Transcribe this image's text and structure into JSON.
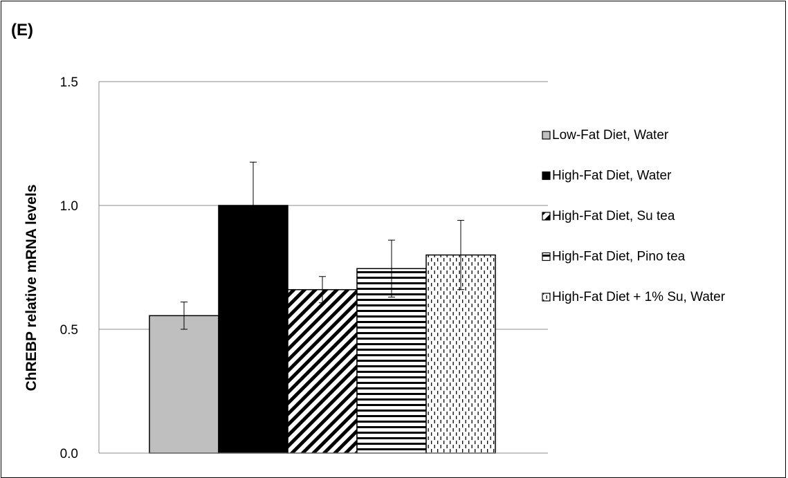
{
  "panel_label": "(E)",
  "chart_data": {
    "type": "bar",
    "title": "",
    "xlabel": "",
    "ylabel": "ChREBP relative mRNA levels",
    "ylim": [
      0,
      1.5
    ],
    "yticks": [
      "0.0",
      "0.5",
      "1.0",
      "1.5"
    ],
    "grid": true,
    "legend_position": "right",
    "series": [
      {
        "name": "Low-Fat Diet, Water",
        "value": 0.555,
        "error": 0.055,
        "pattern": "solid-gray",
        "color": "#bfbfbf"
      },
      {
        "name": "High-Fat Diet, Water",
        "value": 1.0,
        "error": 0.175,
        "pattern": "solid-black",
        "color": "#000000"
      },
      {
        "name": "High-Fat Diet, Su tea",
        "value": 0.66,
        "error": 0.053,
        "pattern": "diagonal-stripes",
        "color": "#000000"
      },
      {
        "name": "High-Fat Diet, Pino tea",
        "value": 0.745,
        "error": 0.115,
        "pattern": "horizontal-stripes",
        "color": "#000000"
      },
      {
        "name": "High-Fat Diet + 1% Su, Water",
        "value": 0.8,
        "error": 0.14,
        "pattern": "dotted-vertical",
        "color": "#000000"
      }
    ]
  }
}
